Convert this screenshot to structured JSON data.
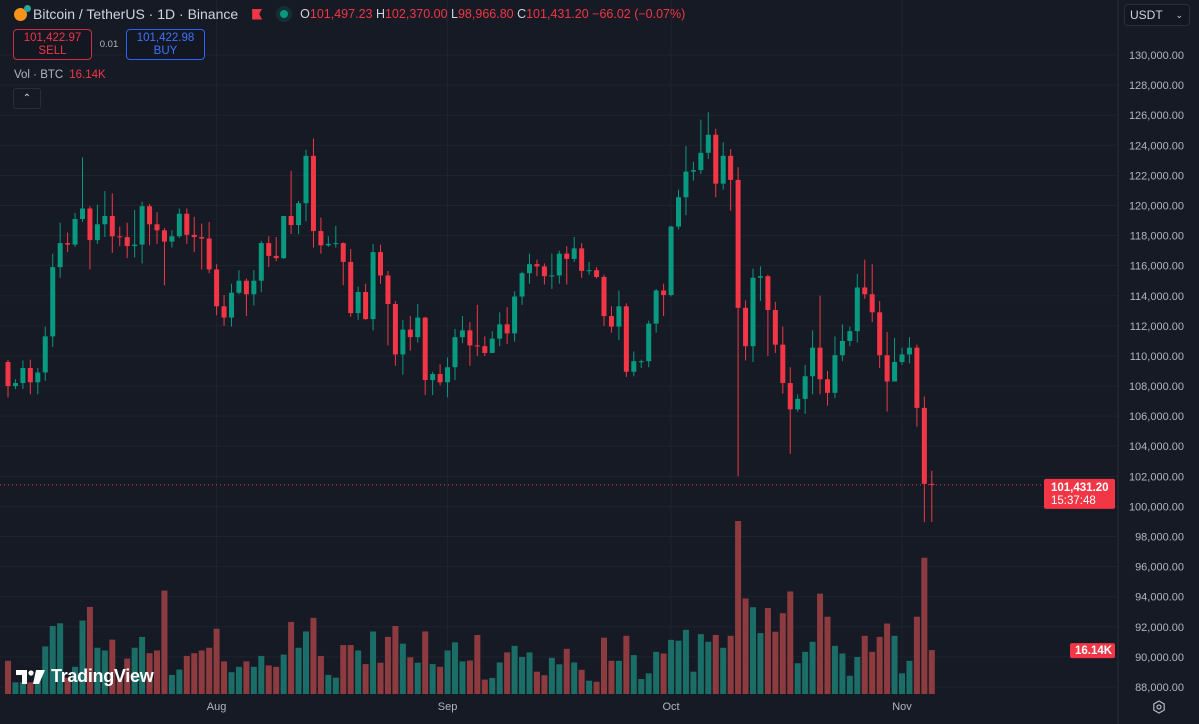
{
  "header": {
    "symbol_title": "Bitcoin / TetherUS · 1D · Binance",
    "ohlc": {
      "o_label": "O",
      "o": "101,497.23",
      "h_label": "H",
      "h": "102,370.00",
      "l_label": "L",
      "l": "98,966.80",
      "c_label": "C",
      "c": "101,431.20",
      "change": "−66.02 (−0.07%)"
    }
  },
  "trade": {
    "sell_price": "101,422.97",
    "sell_label": "SELL",
    "spread": "0.01",
    "buy_price": "101,422.98",
    "buy_label": "BUY"
  },
  "volume_legend": {
    "label": "Vol · BTC",
    "value": "16.14K"
  },
  "currency_select": {
    "value": "USDT"
  },
  "brand": "TradingView",
  "price_label": {
    "price": "101,431.20",
    "countdown": "15:37:48"
  },
  "volume_label": "16.14K",
  "colors": {
    "up": "#089981",
    "down": "#f23645",
    "up_volume": "#1b6e67",
    "down_volume": "#8e3b40",
    "background": "#161a25"
  },
  "chart_data": {
    "type": "candlestick",
    "title": "",
    "ylim": [
      88000,
      130000
    ],
    "y_ticks": [
      "130,000.00",
      "128,000.00",
      "126,000.00",
      "124,000.00",
      "122,000.00",
      "120,000.00",
      "118,000.00",
      "116,000.00",
      "114,000.00",
      "112,000.00",
      "110,000.00",
      "108,000.00",
      "106,000.00",
      "104,000.00",
      "102,000.00",
      "100,000.00",
      "98,000.00",
      "96,000.00",
      "94,000.00",
      "92,000.00",
      "90,000.00",
      "88,000.00"
    ],
    "x_ticks": [
      {
        "label": "Aug",
        "date": "Aug 1"
      },
      {
        "label": "Sep",
        "date": "Sep 1"
      },
      {
        "label": "Oct",
        "date": "Oct 1"
      },
      {
        "label": "Nov",
        "date": "Nov 1"
      }
    ],
    "grid": true,
    "columns": [
      "date",
      "open",
      "high",
      "low",
      "close",
      "volume_k"
    ],
    "candles": [
      [
        "Jul 4",
        109600,
        109750,
        107250,
        108000,
        12.2
      ],
      [
        "Jul 5",
        108000,
        108450,
        107800,
        108200,
        4.3
      ],
      [
        "Jul 6",
        108200,
        109700,
        107800,
        109200,
        4.3
      ],
      [
        "Jul 7",
        109200,
        109750,
        107450,
        108250,
        4.3
      ],
      [
        "Jul 8",
        108250,
        109200,
        107450,
        108900,
        6
      ],
      [
        "Jul 9",
        108900,
        111950,
        108350,
        111300,
        17.5
      ],
      [
        "Jul 10",
        111300,
        116800,
        110600,
        115900,
        25
      ],
      [
        "Jul 11",
        115900,
        118850,
        115200,
        117500,
        26
      ],
      [
        "Jul 12",
        117500,
        118200,
        116900,
        117400,
        6
      ],
      [
        "Jul 13",
        117400,
        119500,
        117250,
        119100,
        10
      ],
      [
        "Jul 14",
        119100,
        123200,
        118900,
        119800,
        27
      ],
      [
        "Jul 15",
        119800,
        119950,
        115750,
        117700,
        32
      ],
      [
        "Jul 16",
        117700,
        120050,
        117450,
        118750,
        17
      ],
      [
        "Jul 17",
        118750,
        120950,
        117900,
        119300,
        16
      ],
      [
        "Jul 18",
        119300,
        120800,
        116850,
        117950,
        20
      ],
      [
        "Jul 19",
        117950,
        118600,
        117300,
        117900,
        6
      ],
      [
        "Jul 20",
        117900,
        118850,
        116500,
        117300,
        13
      ],
      [
        "Jul 21",
        117300,
        119700,
        116550,
        117400,
        17
      ],
      [
        "Jul 22",
        117400,
        120250,
        116150,
        119950,
        21
      ],
      [
        "Jul 23",
        119950,
        120100,
        117350,
        118750,
        15
      ],
      [
        "Jul 24",
        118750,
        119550,
        117450,
        118350,
        16
      ],
      [
        "Jul 25",
        118350,
        118500,
        114700,
        117600,
        38
      ],
      [
        "Jul 26",
        117600,
        118350,
        117200,
        117950,
        7
      ],
      [
        "Jul 27",
        117950,
        119800,
        117850,
        119450,
        9
      ],
      [
        "Jul 28",
        119450,
        119800,
        117450,
        118050,
        14
      ],
      [
        "Jul 29",
        118050,
        119250,
        116900,
        117900,
        15
      ],
      [
        "Jul 30",
        117900,
        118800,
        115750,
        117800,
        16
      ],
      [
        "Jul 31",
        117800,
        118900,
        115500,
        115750,
        17
      ],
      [
        "Aug 1",
        115750,
        116100,
        112700,
        113300,
        24
      ],
      [
        "Aug 2",
        113300,
        114050,
        112000,
        112550,
        12
      ],
      [
        "Aug 3",
        112550,
        114800,
        111950,
        114200,
        8
      ],
      [
        "Aug 4",
        114200,
        115700,
        114100,
        115000,
        10
      ],
      [
        "Aug 5",
        115000,
        115150,
        112650,
        114100,
        12
      ],
      [
        "Aug 6",
        114100,
        115700,
        113350,
        115000,
        10
      ],
      [
        "Aug 7",
        115000,
        117650,
        114250,
        117500,
        14
      ],
      [
        "Aug 8",
        117500,
        117950,
        115900,
        116650,
        10.5
      ],
      [
        "Aug 9",
        116650,
        117900,
        116300,
        116500,
        10
      ],
      [
        "Aug 10",
        116500,
        119300,
        116450,
        119300,
        14.5
      ],
      [
        "Aug 11",
        119300,
        122300,
        118100,
        118700,
        26.5
      ],
      [
        "Aug 12",
        118700,
        120300,
        118100,
        120150,
        17
      ],
      [
        "Aug 13",
        120150,
        123700,
        118950,
        123300,
        23
      ],
      [
        "Aug 14",
        123300,
        124450,
        117200,
        118300,
        28
      ],
      [
        "Aug 15",
        118300,
        119200,
        116800,
        117350,
        14
      ],
      [
        "Aug 16",
        117350,
        117950,
        117250,
        117450,
        7
      ],
      [
        "Aug 17",
        117450,
        118650,
        117200,
        117500,
        6
      ],
      [
        "Aug 18",
        117500,
        117550,
        114700,
        116250,
        18
      ],
      [
        "Aug 19",
        116250,
        117100,
        112600,
        112850,
        18
      ],
      [
        "Aug 20",
        112850,
        114600,
        112400,
        114250,
        16
      ],
      [
        "Aug 21",
        114250,
        114800,
        112400,
        112450,
        11
      ],
      [
        "Aug 22",
        112450,
        117450,
        111700,
        116900,
        23
      ],
      [
        "Aug 23",
        116900,
        117400,
        114800,
        115350,
        11.5
      ],
      [
        "Aug 24",
        115350,
        115650,
        110700,
        113450,
        21
      ],
      [
        "Aug 25",
        113450,
        113650,
        109350,
        110100,
        25
      ],
      [
        "Aug 26",
        110100,
        112400,
        108750,
        111750,
        18.5
      ],
      [
        "Aug 27",
        111750,
        112650,
        110350,
        111250,
        13.5
      ],
      [
        "Aug 28",
        111250,
        113450,
        110900,
        112550,
        11.5
      ],
      [
        "Aug 29",
        112550,
        112600,
        107400,
        108400,
        23
      ],
      [
        "Aug 30",
        108400,
        108950,
        107400,
        108800,
        11
      ],
      [
        "Aug 31",
        108800,
        109450,
        108050,
        108250,
        10
      ],
      [
        "Sep 1",
        108250,
        109900,
        107250,
        109250,
        16
      ],
      [
        "Sep 2",
        109250,
        111800,
        108400,
        111250,
        19
      ],
      [
        "Sep 3",
        111250,
        112650,
        110850,
        111700,
        12
      ],
      [
        "Sep 4",
        111700,
        112250,
        109350,
        110700,
        12.3
      ],
      [
        "Sep 5",
        110700,
        113400,
        110000,
        110650,
        21.7
      ],
      [
        "Sep 6",
        110650,
        111300,
        110000,
        110200,
        5.3
      ],
      [
        "Sep 7",
        110200,
        111650,
        110200,
        111150,
        5.9
      ],
      [
        "Sep 8",
        111150,
        112900,
        110650,
        112100,
        11.6
      ],
      [
        "Sep 9",
        112100,
        113250,
        110800,
        111500,
        15.3
      ],
      [
        "Sep 10",
        111500,
        114300,
        110950,
        113950,
        17.7
      ],
      [
        "Sep 11",
        113950,
        115600,
        113400,
        115500,
        13.6
      ],
      [
        "Sep 12",
        115500,
        116800,
        114800,
        116100,
        15.3
      ],
      [
        "Sep 13",
        116100,
        116400,
        115300,
        115950,
        8.2
      ],
      [
        "Sep 14",
        115950,
        116150,
        114750,
        115300,
        6.9
      ],
      [
        "Sep 15",
        115300,
        116800,
        114450,
        115350,
        13.3
      ],
      [
        "Sep 16",
        115350,
        117000,
        114800,
        116800,
        10.9
      ],
      [
        "Sep 17",
        116800,
        117300,
        114750,
        116450,
        16.6
      ],
      [
        "Sep 18",
        116450,
        117900,
        116250,
        117150,
        11.6
      ],
      [
        "Sep 19",
        117150,
        117500,
        115200,
        115650,
        8.9
      ],
      [
        "Sep 20",
        115650,
        116250,
        115400,
        115700,
        4.9
      ],
      [
        "Sep 21",
        115700,
        115900,
        115150,
        115250,
        4.5
      ],
      [
        "Sep 22",
        115250,
        115400,
        112000,
        112650,
        20.7
      ],
      [
        "Sep 23",
        112650,
        113300,
        111550,
        111950,
        12.2
      ],
      [
        "Sep 24",
        111950,
        114350,
        111050,
        113300,
        12.2
      ],
      [
        "Sep 25",
        113300,
        113500,
        108600,
        108950,
        21.4
      ],
      [
        "Sep 26",
        108950,
        110300,
        108650,
        109650,
        14.3
      ],
      [
        "Sep 27",
        109650,
        109750,
        109200,
        109650,
        5.5
      ],
      [
        "Sep 28",
        109650,
        112350,
        109250,
        112150,
        7.6
      ],
      [
        "Sep 29",
        112150,
        114450,
        111550,
        114350,
        15.5
      ],
      [
        "Sep 30",
        114350,
        114800,
        112650,
        114050,
        14.9
      ],
      [
        "Oct 1",
        114050,
        118650,
        113950,
        118600,
        19.9
      ],
      [
        "Oct 2",
        118600,
        121050,
        118400,
        120550,
        19.6
      ],
      [
        "Oct 3",
        120550,
        123950,
        119350,
        122250,
        23.6
      ],
      [
        "Oct 4",
        122250,
        122900,
        121650,
        122350,
        8.2
      ],
      [
        "Oct 5",
        122350,
        125700,
        122100,
        123500,
        22
      ],
      [
        "Oct 6",
        123500,
        126200,
        123100,
        124700,
        19.2
      ],
      [
        "Oct 7",
        124700,
        125100,
        120550,
        121450,
        21.7
      ],
      [
        "Oct 8",
        121450,
        124200,
        121050,
        123300,
        17
      ],
      [
        "Oct 9",
        123300,
        123750,
        119650,
        121700,
        21.4
      ],
      [
        "Oct 10",
        121700,
        122550,
        102000,
        113200,
        63.6
      ],
      [
        "Oct 11",
        113200,
        113700,
        109700,
        110650,
        35.1
      ],
      [
        "Oct 12",
        110650,
        115800,
        109600,
        115200,
        31.9
      ],
      [
        "Oct 13",
        115200,
        115950,
        113650,
        115300,
        22.4
      ],
      [
        "Oct 14",
        115300,
        115400,
        110000,
        113050,
        31.6
      ],
      [
        "Oct 15",
        113050,
        113600,
        110200,
        110750,
        22.9
      ],
      [
        "Oct 16",
        110750,
        111950,
        107500,
        108200,
        29.7
      ],
      [
        "Oct 17",
        108200,
        109250,
        103500,
        106450,
        37.7
      ],
      [
        "Oct 18",
        106450,
        107450,
        106300,
        107150,
        11.3
      ],
      [
        "Oct 19",
        107150,
        109400,
        106150,
        108650,
        15.5
      ],
      [
        "Oct 20",
        108650,
        111700,
        107450,
        110550,
        19.2
      ],
      [
        "Oct 21",
        110550,
        114000,
        107450,
        108450,
        36.9
      ],
      [
        "Oct 22",
        108450,
        109000,
        106700,
        107550,
        28.4
      ],
      [
        "Oct 23",
        107550,
        111300,
        107200,
        110050,
        17.7
      ],
      [
        "Oct 24",
        110050,
        112100,
        109650,
        111000,
        14.9
      ],
      [
        "Oct 25",
        111000,
        111950,
        110650,
        111650,
        6.7
      ],
      [
        "Oct 26",
        111650,
        115450,
        110900,
        114550,
        13.6
      ],
      [
        "Oct 27",
        114550,
        116400,
        113800,
        114100,
        21.4
      ],
      [
        "Oct 28",
        114100,
        116100,
        112250,
        112900,
        15.5
      ],
      [
        "Oct 29",
        112900,
        113650,
        109200,
        110050,
        21
      ],
      [
        "Oct 30",
        110050,
        111600,
        106300,
        108300,
        25.9
      ],
      [
        "Oct 31",
        108300,
        111200,
        108300,
        109600,
        21.4
      ],
      [
        "Nov 1",
        109600,
        110550,
        109400,
        110100,
        7.6
      ],
      [
        "Nov 2",
        110100,
        111250,
        109500,
        110550,
        12.2
      ],
      [
        "Nov 3",
        110550,
        110750,
        105300,
        106550,
        28.4
      ],
      [
        "Nov 4",
        106550,
        107300,
        98950,
        101497.23,
        50.1
      ],
      [
        "Nov 5",
        101497.23,
        102370,
        98966.8,
        101431.2,
        16.14
      ]
    ],
    "last_price": 101431.2
  }
}
